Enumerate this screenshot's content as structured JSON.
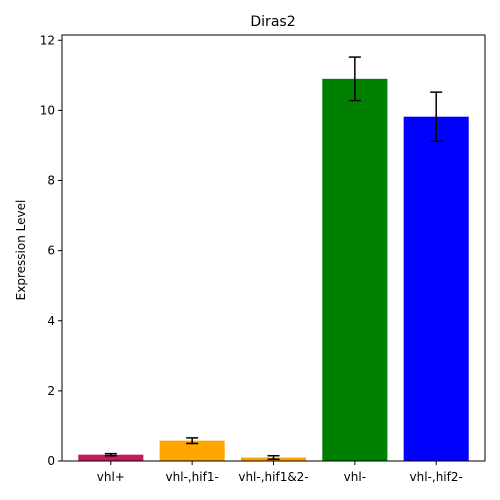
{
  "chart_data": {
    "type": "bar",
    "title": "Diras2",
    "xlabel": "",
    "ylabel": "Expression Level",
    "categories": [
      "vhl+",
      "vhl-,hif1-",
      "vhl-,hif1&2-",
      "vhl-",
      "vhl-,hif2-"
    ],
    "values": [
      0.18,
      0.58,
      0.1,
      10.9,
      9.82
    ],
    "errors": [
      0.03,
      0.08,
      0.05,
      0.62,
      0.7
    ],
    "colors": [
      "#c71a5e",
      "#ffa500",
      "#ffa500",
      "#008000",
      "#0000ff"
    ],
    "ylim": [
      0,
      12.15
    ],
    "yticks": [
      0,
      2,
      4,
      6,
      8,
      10,
      12
    ],
    "grid": false,
    "legend": "none"
  }
}
